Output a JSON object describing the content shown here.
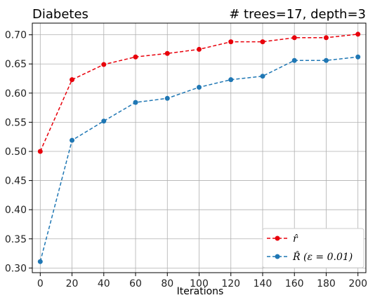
{
  "chart_data": {
    "type": "line",
    "title_left": "Diabetes",
    "title_right": "# trees=17, depth=3",
    "xlabel": "Iterations",
    "ylabel": "",
    "x": [
      0,
      20,
      40,
      60,
      80,
      100,
      120,
      140,
      160,
      180,
      200
    ],
    "xticks": [
      0,
      20,
      40,
      60,
      80,
      100,
      120,
      140,
      160,
      180,
      200
    ],
    "yticks": [
      0.3,
      0.35,
      0.4,
      0.45,
      0.5,
      0.55,
      0.6,
      0.65,
      0.7
    ],
    "ytick_labels": [
      "0.30",
      "0.35",
      "0.40",
      "0.45",
      "0.50",
      "0.55",
      "0.60",
      "0.65",
      "0.70"
    ],
    "xlim": [
      -5,
      205
    ],
    "ylim": [
      0.292,
      0.72
    ],
    "grid": true,
    "legend_position": "lower-right",
    "series": [
      {
        "name": "r̂",
        "color": "#e8000b",
        "values": [
          0.5,
          0.623,
          0.649,
          0.662,
          0.668,
          0.675,
          0.688,
          0.688,
          0.695,
          0.695,
          0.701
        ]
      },
      {
        "name": "R̂ (ε = 0.01)",
        "color": "#1f77b4",
        "values": [
          0.311,
          0.519,
          0.552,
          0.584,
          0.591,
          0.61,
          0.623,
          0.629,
          0.656,
          0.656,
          0.662
        ]
      }
    ]
  }
}
